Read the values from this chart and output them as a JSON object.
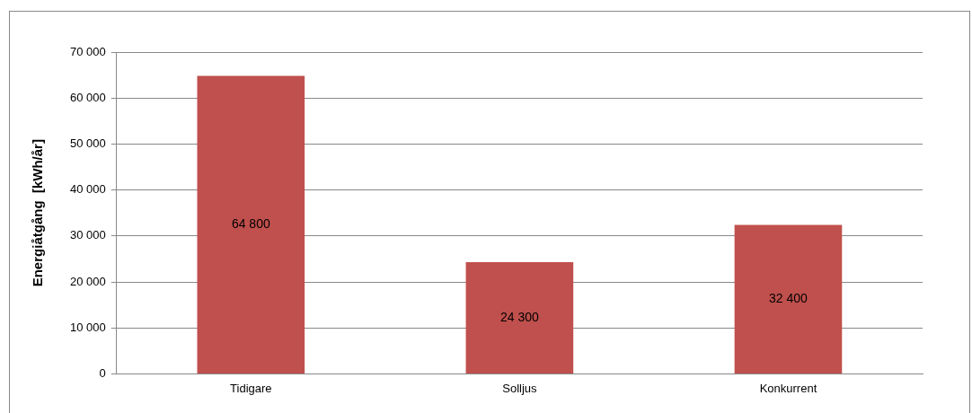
{
  "chart_data": {
    "type": "bar",
    "ylabel": "Energiåtgång  [kWh/år]",
    "categories": [
      "Tidigare",
      "Solljus",
      "Konkurrent"
    ],
    "values": [
      64800,
      24300,
      32400
    ],
    "color": "#c0504d",
    "value_labels": [
      "64 800",
      "24 300",
      "32 400"
    ],
    "ylim": [
      0,
      70000
    ],
    "yticks": [
      {
        "value": 0,
        "label": "0"
      },
      {
        "value": 10000,
        "label": "10 000"
      },
      {
        "value": 20000,
        "label": "20 000"
      },
      {
        "value": 30000,
        "label": "30 000"
      },
      {
        "value": 40000,
        "label": "40 000"
      },
      {
        "value": 50000,
        "label": "50 000"
      },
      {
        "value": 60000,
        "label": "60 000"
      },
      {
        "value": 70000,
        "label": "70 000"
      }
    ],
    "grid": "y",
    "legend": false
  }
}
